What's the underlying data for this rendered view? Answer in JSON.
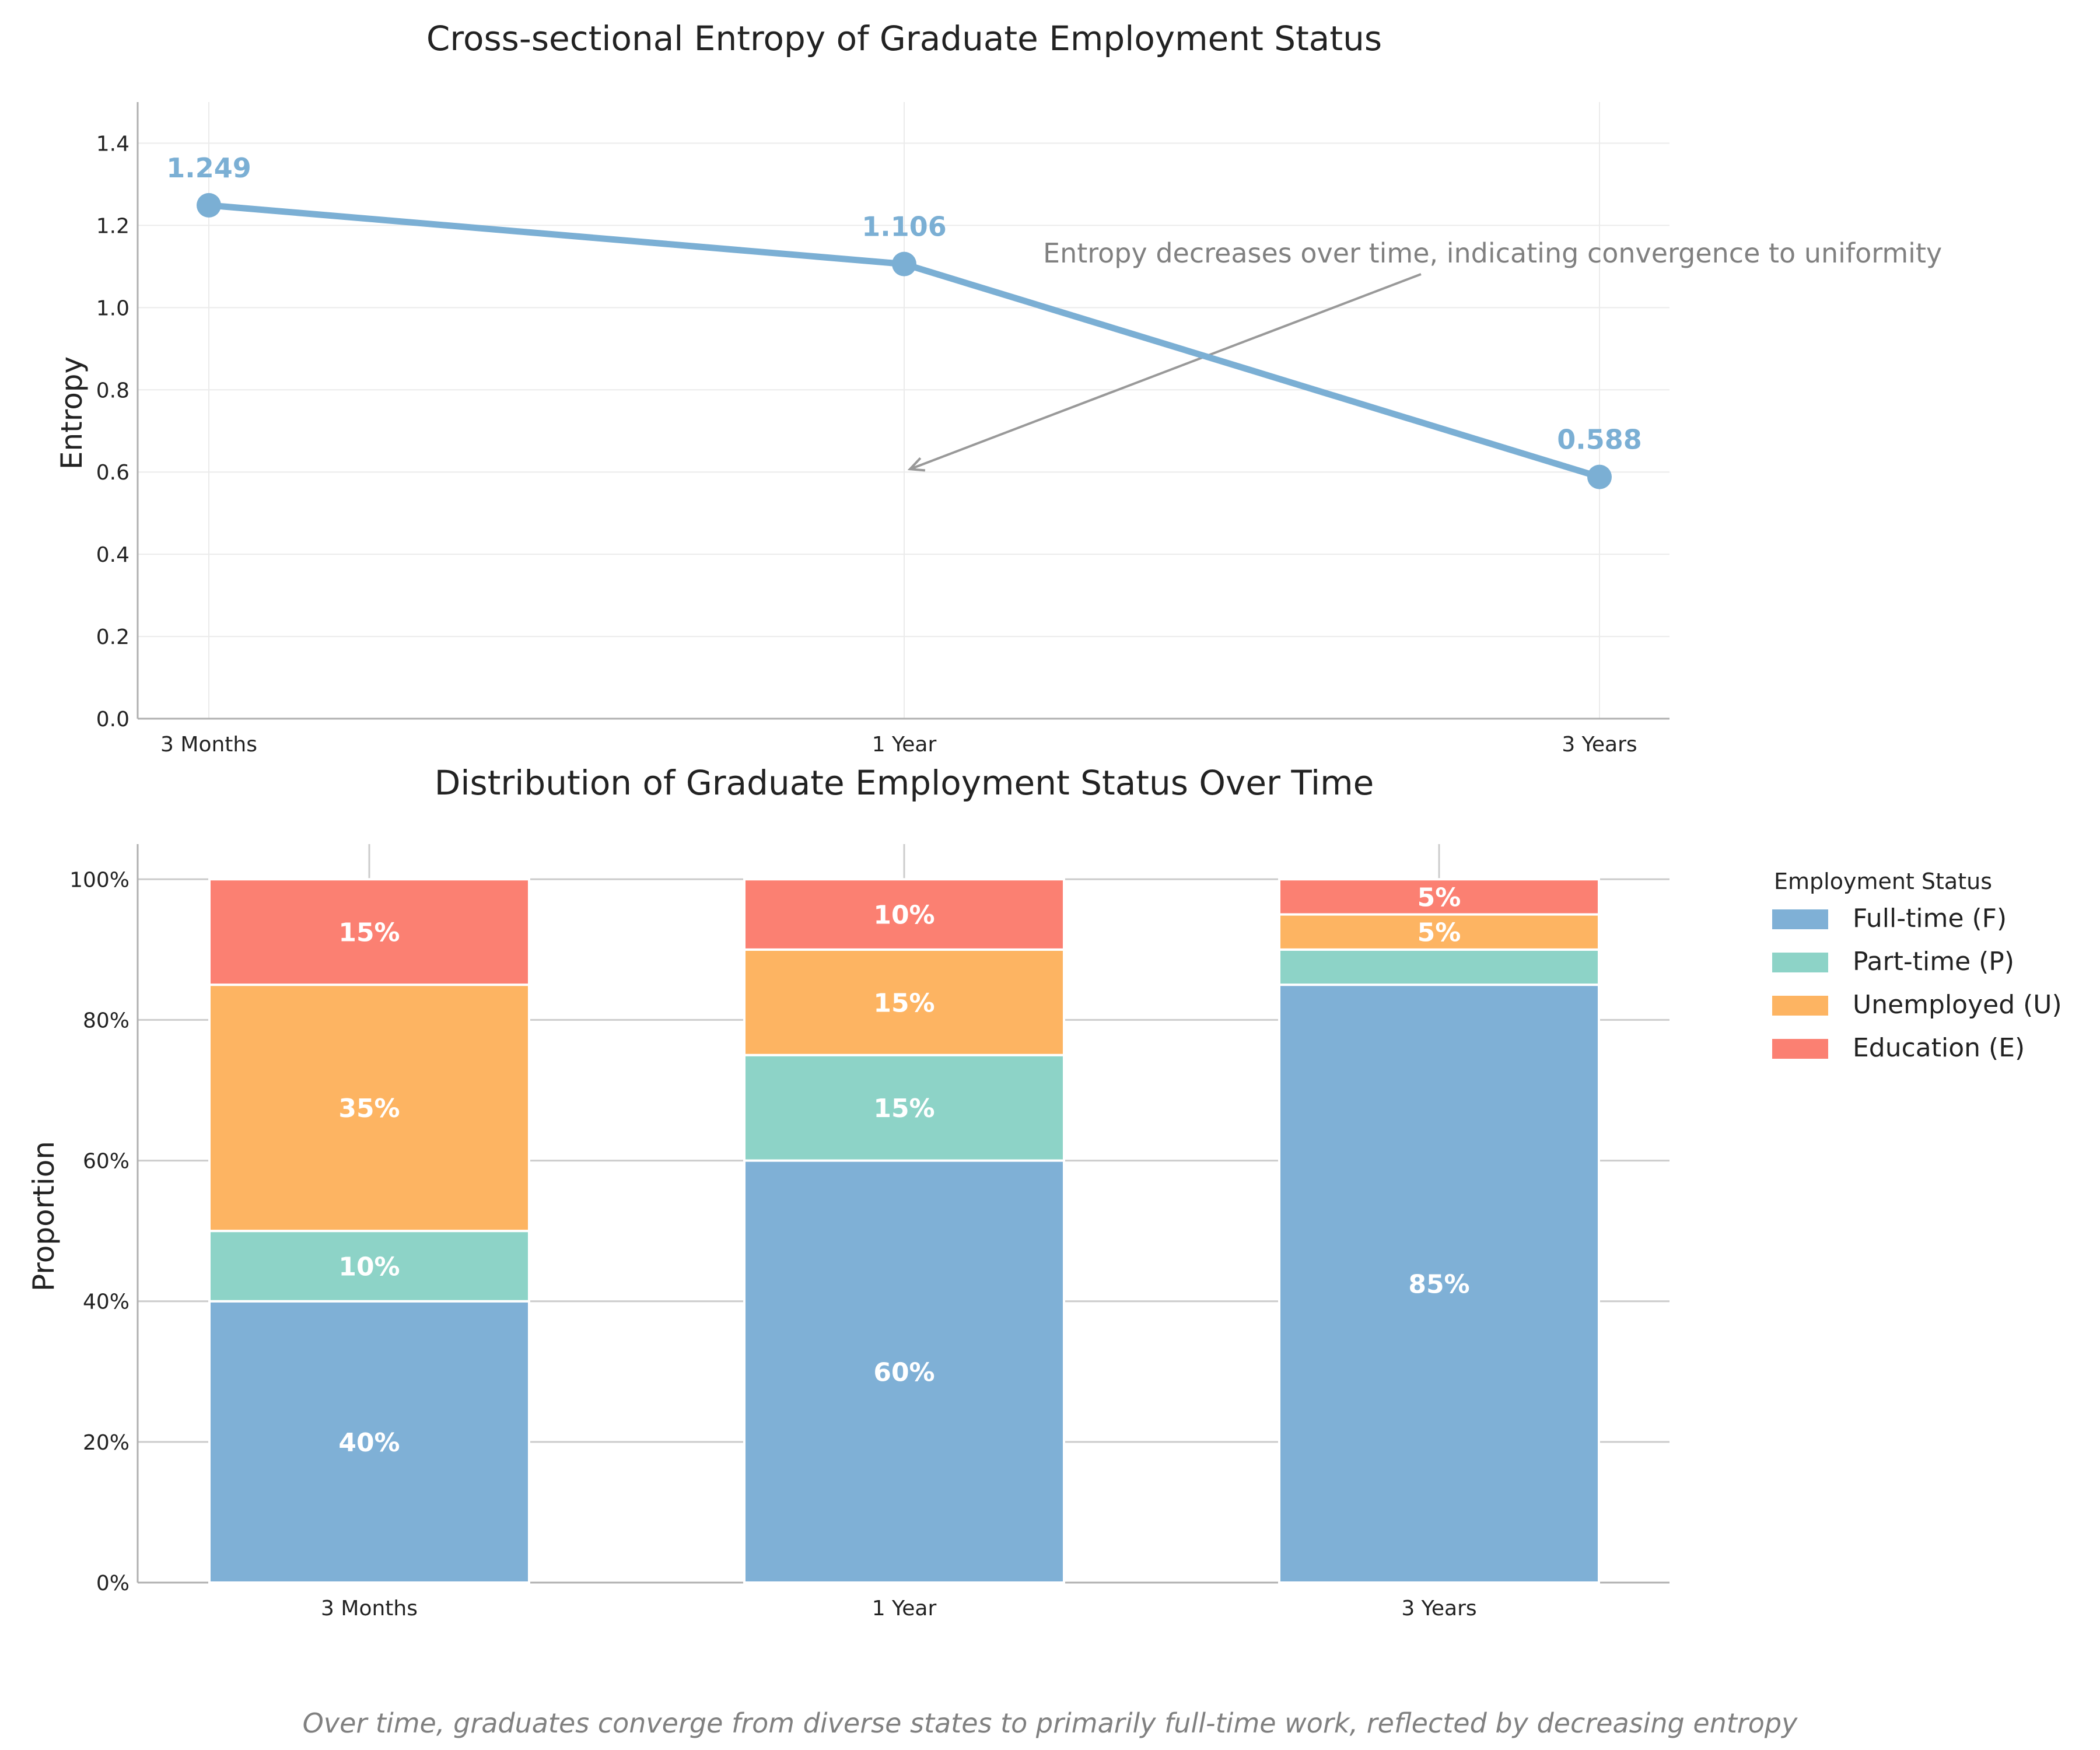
{
  "chart_data": [
    {
      "type": "line",
      "title": "Cross-sectional Entropy of Graduate Employment Status",
      "xlabel": "",
      "ylabel": "Entropy",
      "categories": [
        "3 Months",
        "1 Year",
        "3 Years"
      ],
      "values": [
        1.249,
        1.106,
        0.588
      ],
      "value_labels": [
        "1.249",
        "1.106",
        "0.588"
      ],
      "ylim": [
        0,
        1.5
      ],
      "yticks": [
        0.0,
        0.2,
        0.4,
        0.6,
        0.8,
        1.0,
        1.2,
        1.4
      ],
      "ytick_labels": [
        "0.0",
        "0.2",
        "0.4",
        "0.6",
        "0.8",
        "1.0",
        "1.2",
        "1.4"
      ],
      "grid": true,
      "color": "#7BAFD4",
      "annotation": {
        "text": "Entropy decreases over time, indicating convergence to uniformity",
        "points_to": {
          "category": "1 Year",
          "y": 0.6
        }
      }
    },
    {
      "type": "bar",
      "stacked": true,
      "title": "Distribution of Graduate Employment Status Over Time",
      "xlabel": "",
      "ylabel": "Proportion",
      "categories": [
        "3 Months",
        "1 Year",
        "3 Years"
      ],
      "ylim": [
        0,
        1.05
      ],
      "yticks": [
        0,
        0.2,
        0.4,
        0.6,
        0.8,
        1.0
      ],
      "ytick_labels": [
        "0%",
        "20%",
        "40%",
        "60%",
        "80%",
        "100%"
      ],
      "grid": true,
      "legend_title": "Employment Status",
      "legend_position": "outside right",
      "series": [
        {
          "name": "Full-time (F)",
          "values": [
            0.4,
            0.6,
            0.85
          ],
          "labels": [
            "40%",
            "60%",
            "85%"
          ],
          "color": "#7FB0D6"
        },
        {
          "name": "Part-time (P)",
          "values": [
            0.1,
            0.15,
            0.05
          ],
          "labels": [
            "10%",
            "15%",
            ""
          ],
          "color": "#8DD3C7"
        },
        {
          "name": "Unemployed (U)",
          "values": [
            0.35,
            0.15,
            0.05
          ],
          "labels": [
            "35%",
            "15%",
            "5%"
          ],
          "color": "#FDB462"
        },
        {
          "name": "Education (E)",
          "values": [
            0.15,
            0.1,
            0.05
          ],
          "labels": [
            "15%",
            "10%",
            "5%"
          ],
          "color": "#FB8072"
        }
      ]
    }
  ],
  "caption": "Over time, graduates converge from diverse states to primarily full-time work, reflected by decreasing entropy"
}
